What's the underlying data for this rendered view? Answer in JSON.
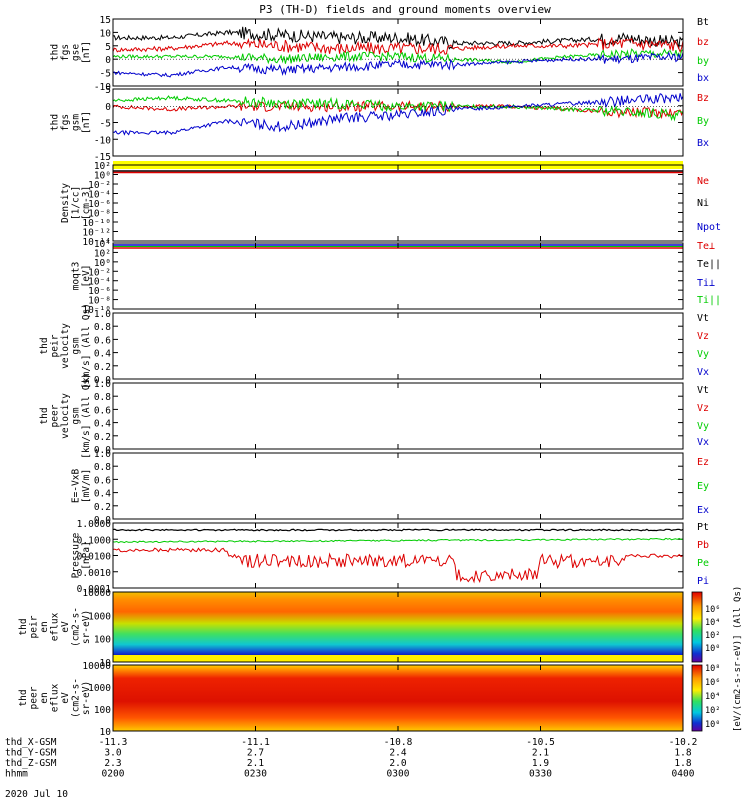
{
  "title": "P3 (TH-D) fields and ground moments overview",
  "date_label": "2020 Jul 10",
  "colors": {
    "black": "#000000",
    "red": "#dd0000",
    "green": "#00cc00",
    "blue": "#0000cc",
    "yellow": "#ffff00"
  },
  "chart_data": {
    "type": "multi-panel time series",
    "x_ticks": [
      "0200",
      "0230",
      "0300",
      "0330",
      "0400"
    ],
    "x_tick_rows": [
      {
        "label": "thd_X-GSM",
        "values": [
          "-11.3",
          "-11.1",
          "-10.8",
          "-10.5",
          "-10.2"
        ]
      },
      {
        "label": "thd_Y-GSM",
        "values": [
          "3.0",
          "2.7",
          "2.4",
          "2.1",
          "1.8"
        ]
      },
      {
        "label": "thd_Z-GSM",
        "values": [
          "2.3",
          "2.1",
          "2.0",
          "1.9",
          "1.8"
        ]
      },
      {
        "label": "hhmm",
        "values": [
          "0200",
          "0230",
          "0300",
          "0330",
          "0400"
        ]
      }
    ],
    "panels": [
      {
        "id": "fgs_gse",
        "ylabel": [
          "thd",
          "fgs",
          "gse",
          "[nT]"
        ],
        "ylim": [
          -10,
          15
        ],
        "yticks": [
          "15",
          "10",
          "5",
          "0",
          "-5",
          "-10"
        ],
        "legend": [
          {
            "name": "Bt",
            "color": "black"
          },
          {
            "name": "bz",
            "color": "red"
          },
          {
            "name": "by",
            "color": "green"
          },
          {
            "name": "bx",
            "color": "blue"
          }
        ],
        "series": [
          {
            "name": "Bt",
            "color": "black",
            "t": [
              0,
              0.1,
              0.2,
              0.3,
              0.4,
              0.5,
              0.6,
              0.7,
              0.8,
              0.9,
              1.0
            ],
            "y": [
              8,
              8,
              10,
              9,
              8,
              8,
              6,
              6,
              7,
              8,
              6
            ]
          },
          {
            "name": "bz",
            "color": "red",
            "t": [
              0,
              0.1,
              0.2,
              0.3,
              0.4,
              0.5,
              0.6,
              0.7,
              0.8,
              0.9,
              1.0
            ],
            "y": [
              3.5,
              4,
              6,
              5,
              4,
              4,
              4,
              5,
              5,
              6,
              5
            ]
          },
          {
            "name": "by",
            "color": "green",
            "t": [
              0,
              0.1,
              0.2,
              0.3,
              0.4,
              0.5,
              0.6,
              0.7,
              0.8,
              0.9,
              1.0
            ],
            "y": [
              1,
              1,
              1,
              0,
              1,
              1,
              0,
              -1,
              1,
              2,
              2
            ]
          },
          {
            "name": "bx",
            "color": "blue",
            "t": [
              0,
              0.1,
              0.2,
              0.3,
              0.4,
              0.5,
              0.6,
              0.7,
              0.8,
              0.9,
              1.0
            ],
            "y": [
              -5,
              -6,
              -3,
              -4,
              -3,
              -2,
              -2,
              -1,
              0,
              0,
              1
            ]
          }
        ]
      },
      {
        "id": "fgs_gsm",
        "ylabel": [
          "thd",
          "fgs",
          "gsm",
          "[nT]"
        ],
        "ylim": [
          -17,
          6
        ],
        "yticks": [
          "5",
          "0",
          "-5",
          "-10",
          "-15"
        ],
        "legend": [
          {
            "name": "Bz",
            "color": "red"
          },
          {
            "name": "By",
            "color": "green"
          },
          {
            "name": "Bx",
            "color": "blue"
          }
        ],
        "series": [
          {
            "name": "Bz",
            "color": "red",
            "t": [
              0,
              0.1,
              0.2,
              0.3,
              0.4,
              0.5,
              0.6,
              0.7,
              0.8,
              0.9,
              1.0
            ],
            "y": [
              0,
              -1,
              0,
              0,
              0,
              0,
              0,
              0,
              -1,
              -2,
              -2
            ]
          },
          {
            "name": "By",
            "color": "green",
            "t": [
              0,
              0.1,
              0.2,
              0.3,
              0.4,
              0.5,
              0.6,
              0.7,
              0.8,
              0.9,
              1.0
            ],
            "y": [
              2,
              3,
              2,
              1,
              1,
              0,
              0,
              0,
              -1,
              -2,
              -3
            ]
          },
          {
            "name": "Bx",
            "color": "blue",
            "t": [
              0,
              0.1,
              0.2,
              0.3,
              0.4,
              0.5,
              0.6,
              0.7,
              0.8,
              0.9,
              1.0
            ],
            "y": [
              -9,
              -9,
              -5,
              -7,
              -4,
              -3,
              -1,
              0,
              1,
              2,
              3
            ]
          }
        ]
      },
      {
        "id": "density",
        "ylabel": [
          "Density",
          "[1/cc]",
          "[cm-3]"
        ],
        "yticks": [
          "10²",
          "10⁰",
          "10⁻²",
          "10⁻⁴",
          "10⁻⁶",
          "10⁻⁸",
          "10⁻¹⁰",
          "10⁻¹²",
          "10⁻¹⁴"
        ],
        "legend": [
          {
            "name": "Ne",
            "color": "red"
          },
          {
            "name": "Ni",
            "color": "black"
          },
          {
            "name": "Npot",
            "color": "blue"
          }
        ]
      },
      {
        "id": "temperature",
        "ylabel": [
          "moqt3",
          "[eV]"
        ],
        "yticks": [
          "10⁴",
          "10²",
          "10⁰",
          "10⁻²",
          "10⁻⁴",
          "10⁻⁶",
          "10⁻⁸",
          "10⁻¹⁰"
        ],
        "legend": [
          {
            "name": "Te⊥",
            "color": "red"
          },
          {
            "name": "Te||",
            "color": "black"
          },
          {
            "name": "Ti⊥",
            "color": "blue"
          },
          {
            "name": "Ti||",
            "color": "green"
          }
        ]
      },
      {
        "id": "peir_velocity",
        "ylabel": [
          "thd",
          "peir",
          "velocity",
          "gsm",
          "[km/s] (All Qs)"
        ],
        "ylim": [
          0,
          1
        ],
        "yticks": [
          "1.0",
          "0.8",
          "0.6",
          "0.4",
          "0.2",
          "0.0"
        ],
        "legend": [
          {
            "name": "Vt",
            "color": "black"
          },
          {
            "name": "Vz",
            "color": "red"
          },
          {
            "name": "Vy",
            "color": "green"
          },
          {
            "name": "Vx",
            "color": "blue"
          }
        ]
      },
      {
        "id": "peer_velocity",
        "ylabel": [
          "thd",
          "peer",
          "velocity",
          "gsm",
          "[km/s] (All Qs)"
        ],
        "ylim": [
          0,
          1
        ],
        "yticks": [
          "1.0",
          "0.8",
          "0.6",
          "0.4",
          "0.2",
          "0.0"
        ],
        "legend": [
          {
            "name": "Vt",
            "color": "black"
          },
          {
            "name": "Vz",
            "color": "red"
          },
          {
            "name": "Vy",
            "color": "green"
          },
          {
            "name": "Vx",
            "color": "blue"
          }
        ]
      },
      {
        "id": "efield",
        "ylabel": [
          "E=-VxB",
          "[mV/m]"
        ],
        "ylim": [
          0,
          1
        ],
        "yticks": [
          "1.0",
          "0.8",
          "0.6",
          "0.4",
          "0.2",
          "0.0"
        ],
        "legend": [
          {
            "name": "Ez",
            "color": "red"
          },
          {
            "name": "Ey",
            "color": "green"
          },
          {
            "name": "Ex",
            "color": "blue"
          }
        ]
      },
      {
        "id": "pressure",
        "ylabel": [
          "Pressure",
          "[nPa]"
        ],
        "yticks": [
          "1.0000",
          "0.1000",
          "0.0100",
          "0.0010",
          "0.0001"
        ],
        "legend": [
          {
            "name": "Pt",
            "color": "black"
          },
          {
            "name": "Pb",
            "color": "red"
          },
          {
            "name": "Pe",
            "color": "green"
          },
          {
            "name": "Pi",
            "color": "blue"
          }
        ]
      },
      {
        "id": "peir_spectrogram",
        "ylabel": [
          "thd",
          "peir",
          "en",
          "eflux",
          "eV",
          "(cm2-s-",
          "sr-eV)"
        ],
        "yticks": [
          "10000",
          "1000",
          "100",
          "10"
        ]
      },
      {
        "id": "peer_spectrogram",
        "ylabel": [
          "thd",
          "peer",
          "en",
          "eflux",
          "eV",
          "(cm2-s-",
          "sr-eV)"
        ],
        "yticks": [
          "10000",
          "1000",
          "100",
          "10"
        ]
      }
    ],
    "colorbar": {
      "label": "[eV/(cm2-s-sr-eV)] (All Qs)",
      "ticks_top": [
        "10⁶",
        "10⁴",
        "10²",
        "10⁰"
      ],
      "ticks_bottom": [
        "10⁸",
        "10⁶",
        "10⁴",
        "10²",
        "10⁰"
      ]
    }
  }
}
